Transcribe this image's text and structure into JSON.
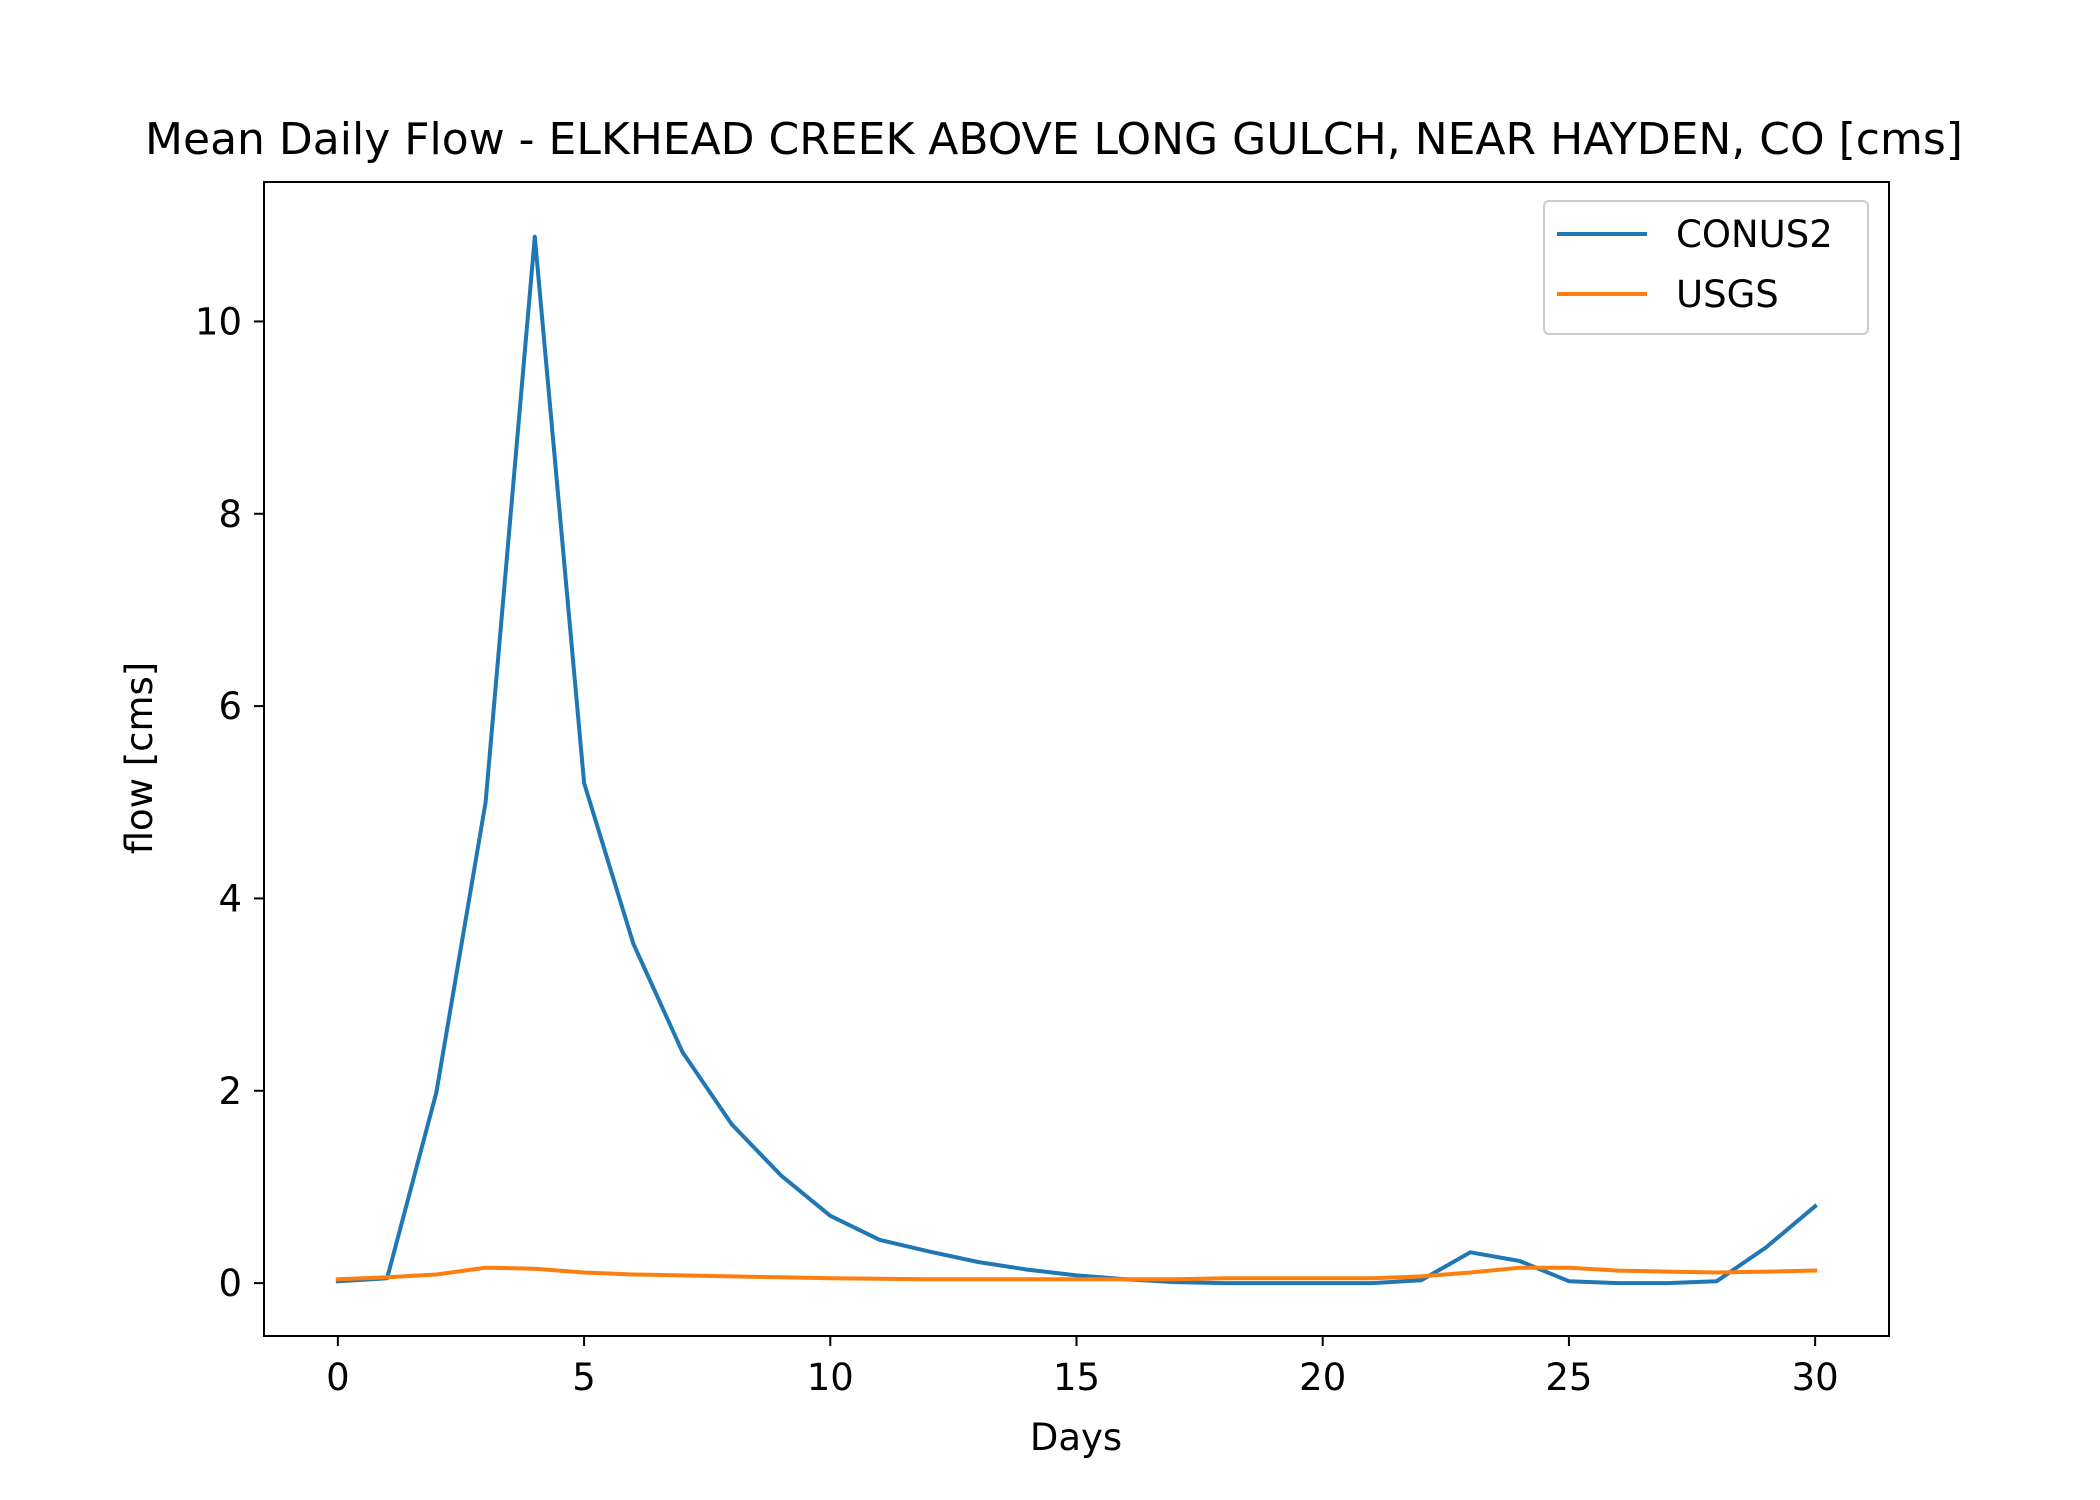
{
  "chart_data": {
    "type": "line",
    "title": "Mean Daily Flow - ELKHEAD CREEK ABOVE LONG GULCH, NEAR HAYDEN, CO [cms]",
    "xlabel": "Days",
    "ylabel": "flow [cms]",
    "xlim": [
      -1.5,
      31.5
    ],
    "ylim": [
      -0.55,
      11.45
    ],
    "xticks": [
      0,
      5,
      10,
      15,
      20,
      25,
      30
    ],
    "yticks": [
      0,
      2,
      4,
      6,
      8,
      10
    ],
    "grid": false,
    "legend_position": "top-right",
    "x": [
      0,
      1,
      2,
      3,
      4,
      5,
      6,
      7,
      8,
      9,
      10,
      11,
      12,
      13,
      14,
      15,
      16,
      17,
      18,
      19,
      20,
      21,
      22,
      23,
      24,
      25,
      26,
      27,
      28,
      29,
      30
    ],
    "series": [
      {
        "name": "CONUS2",
        "color": "#1f77b4",
        "values": [
          0.02,
          0.05,
          1.98,
          5.0,
          10.88,
          5.2,
          3.53,
          2.4,
          1.65,
          1.12,
          0.7,
          0.45,
          0.33,
          0.22,
          0.14,
          0.08,
          0.04,
          0.01,
          0.0,
          0.0,
          0.0,
          0.0,
          0.03,
          0.32,
          0.23,
          0.02,
          0.0,
          0.0,
          0.02,
          0.37,
          0.8
        ]
      },
      {
        "name": "USGS",
        "color": "#ff7f0e",
        "values": [
          0.04,
          0.06,
          0.09,
          0.16,
          0.15,
          0.11,
          0.09,
          0.08,
          0.07,
          0.06,
          0.05,
          0.045,
          0.04,
          0.04,
          0.04,
          0.04,
          0.04,
          0.04,
          0.05,
          0.05,
          0.05,
          0.05,
          0.07,
          0.11,
          0.16,
          0.16,
          0.13,
          0.12,
          0.11,
          0.12,
          0.13
        ]
      }
    ]
  }
}
